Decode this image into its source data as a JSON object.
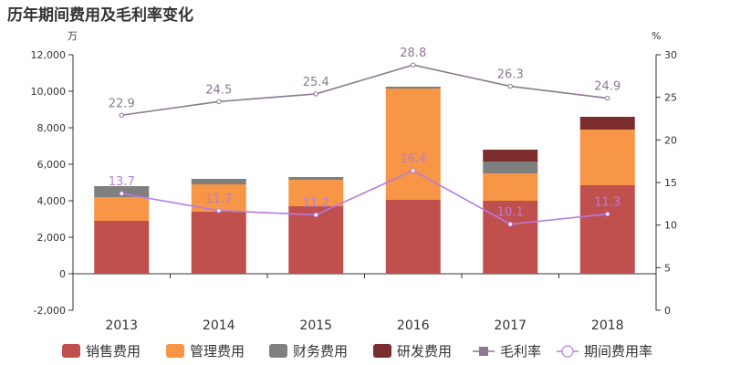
{
  "title": "历年期间费用及毛利率变化",
  "chart_data": {
    "type": "bar",
    "title": "历年期间费用及毛利率变化",
    "left_axis_unit": "万",
    "right_axis_unit": "%",
    "categories": [
      "2013",
      "2014",
      "2015",
      "2016",
      "2017",
      "2018"
    ],
    "left_axis": {
      "min": -2000,
      "max": 12000,
      "ticks": [
        -2000,
        0,
        2000,
        4000,
        6000,
        8000,
        10000,
        12000
      ]
    },
    "right_axis": {
      "min": 0,
      "max": 30,
      "ticks": [
        0,
        5,
        10,
        15,
        20,
        25,
        30
      ]
    },
    "stacked_series": [
      {
        "name": "销售费用",
        "color": "#c0504d",
        "values": [
          2900,
          3400,
          3700,
          4050,
          4000,
          4850
        ]
      },
      {
        "name": "管理费用",
        "color": "#f79646",
        "values": [
          1300,
          1500,
          1450,
          6100,
          1500,
          3050
        ]
      },
      {
        "name": "财务费用",
        "color": "#7f7f7f",
        "values": [
          600,
          300,
          150,
          100,
          650,
          0
        ]
      },
      {
        "name": "研发费用",
        "color": "#7b2c2c",
        "values": [
          0,
          0,
          0,
          0,
          650,
          700
        ]
      }
    ],
    "line_series": [
      {
        "name": "毛利率",
        "color": "#8c7891",
        "axis": "right",
        "values": [
          22.9,
          24.5,
          25.4,
          28.8,
          26.3,
          24.9
        ]
      },
      {
        "name": "期间费用率",
        "color": "#b57be0",
        "axis": "right",
        "values": [
          13.7,
          11.7,
          11.2,
          16.4,
          10.1,
          11.3
        ]
      }
    ],
    "legend": {
      "placement": "bottom",
      "items": [
        "销售费用",
        "管理费用",
        "财务费用",
        "研发费用",
        "毛利率",
        "期间费用率"
      ]
    }
  }
}
